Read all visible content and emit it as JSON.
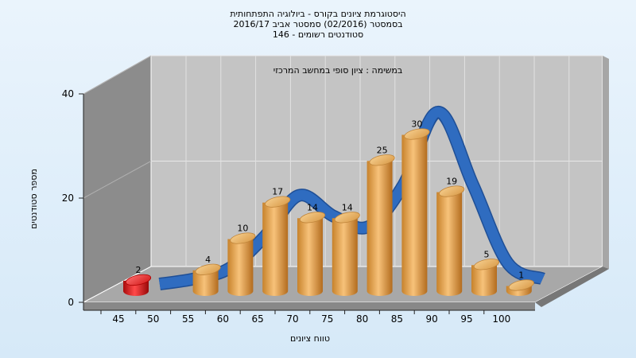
{
  "chart_data": {
    "type": "bar",
    "title_lines": [
      "היסטוגרמת ציונים בקורס - ביולוגיה התפתחותית",
      "בסמסטר  (02/2016)  סמסטר אביב 2016/17",
      "סטודנטים רשומים - 146"
    ],
    "subtitle": "במשימה : ציון סופי במחשב המרכזי",
    "xlabel": "טווח ציונים",
    "ylabel": "מספר סטודנטים",
    "ylim": [
      0,
      40
    ],
    "y_ticks": [
      "0",
      "20",
      "40"
    ],
    "x_ticks": [
      "45",
      "50",
      "55",
      "60",
      "65",
      "70",
      "75",
      "80",
      "85",
      "90",
      "95",
      "100"
    ],
    "series": [
      {
        "type": "bar",
        "categories": [
          "45-50",
          "55-60",
          "60-65",
          "65-70",
          "70-75",
          "75-80",
          "80-85",
          "85-90",
          "90-95",
          "95-100",
          "100"
        ],
        "values": [
          2,
          4,
          10,
          17,
          14,
          14,
          25,
          30,
          19,
          5,
          1
        ],
        "data_labels": [
          "2",
          "4",
          "10",
          "17",
          "14",
          "14",
          "25",
          "30",
          "19",
          "5",
          "1"
        ],
        "colors": [
          "#e01818",
          "#e8a040",
          "#e8a040",
          "#e8a040",
          "#e8a040",
          "#e8a040",
          "#e8a040",
          "#e8a040",
          "#e8a040",
          "#e8a040",
          "#e8a040"
        ]
      },
      {
        "type": "line",
        "x": [
          50,
          55,
          60,
          65,
          70,
          75,
          80,
          85,
          90,
          95,
          100,
          105
        ],
        "values": [
          0,
          1,
          3,
          9,
          17,
          13,
          11,
          19,
          33,
          19,
          4,
          1
        ],
        "color": "#2f6cc0"
      }
    ],
    "grid": true,
    "colors": {
      "back_wall": "#c4c4c4",
      "side_wall": "#8c8c8c",
      "floor": "#a8a8a8",
      "bar": "#e8a040",
      "bar_highlight": "#e01818",
      "curve": "#2f6cc0"
    }
  }
}
